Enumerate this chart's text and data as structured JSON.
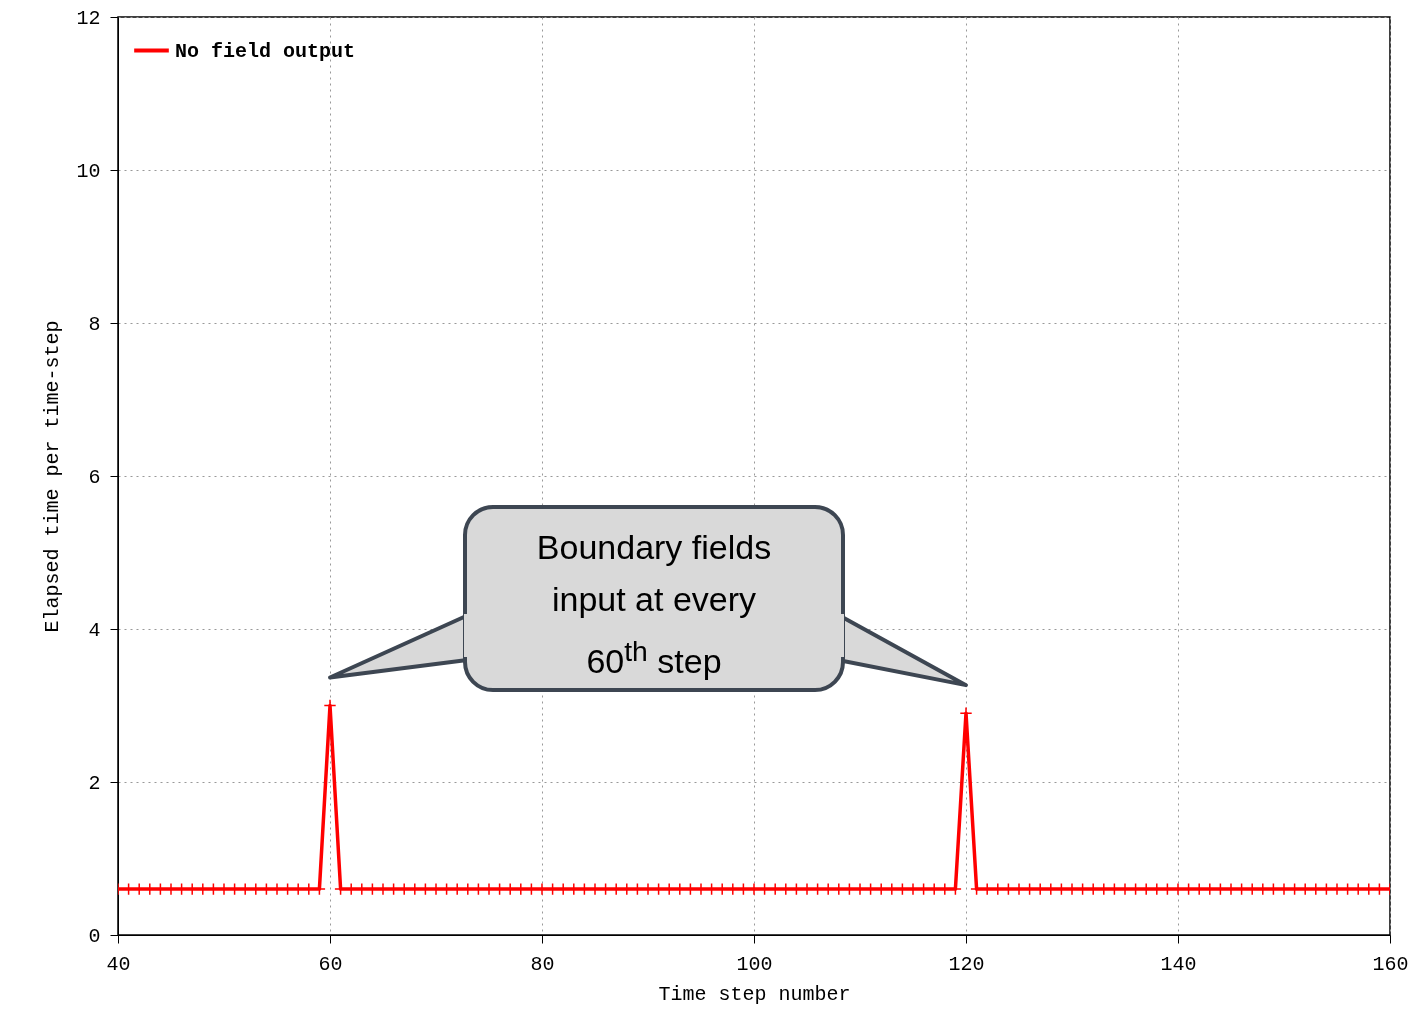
{
  "chart_data": {
    "type": "line",
    "xlabel": "Time step number",
    "ylabel": "Elapsed time per time-step",
    "annotations": [
      "Boundary fields input at every 60$^{th}$ step"
    ],
    "x": [
      40,
      41,
      42,
      43,
      44,
      45,
      46,
      47,
      48,
      49,
      50,
      51,
      52,
      53,
      54,
      55,
      56,
      57,
      58,
      59,
      60,
      61,
      62,
      63,
      64,
      65,
      66,
      67,
      68,
      69,
      70,
      71,
      72,
      73,
      74,
      75,
      76,
      77,
      78,
      79,
      80,
      81,
      82,
      83,
      84,
      85,
      86,
      87,
      88,
      89,
      90,
      91,
      92,
      93,
      94,
      95,
      96,
      97,
      98,
      99,
      100,
      101,
      102,
      103,
      104,
      105,
      106,
      107,
      108,
      109,
      110,
      111,
      112,
      113,
      114,
      115,
      116,
      117,
      118,
      119,
      120,
      121,
      122,
      123,
      124,
      125,
      126,
      127,
      128,
      129,
      130,
      131,
      132,
      133,
      134,
      135,
      136,
      137,
      138,
      139,
      140,
      141,
      142,
      143,
      144,
      145,
      146,
      147,
      148,
      149,
      150,
      151,
      152,
      153,
      154,
      155,
      156,
      157,
      158,
      159,
      160
    ],
    "series": [
      {
        "name": "No field output",
        "color": "#ff0000",
        "values": [
          0.6,
          0.6,
          0.6,
          0.6,
          0.6,
          0.6,
          0.6,
          0.6,
          0.6,
          0.6,
          0.6,
          0.6,
          0.6,
          0.6,
          0.6,
          0.6,
          0.6,
          0.6,
          0.6,
          0.6,
          3.0,
          0.6,
          0.6,
          0.6,
          0.6,
          0.6,
          0.6,
          0.6,
          0.6,
          0.6,
          0.6,
          0.6,
          0.6,
          0.6,
          0.6,
          0.6,
          0.6,
          0.6,
          0.6,
          0.6,
          0.6,
          0.6,
          0.6,
          0.6,
          0.6,
          0.6,
          0.6,
          0.6,
          0.6,
          0.6,
          0.6,
          0.6,
          0.6,
          0.6,
          0.6,
          0.6,
          0.6,
          0.6,
          0.6,
          0.6,
          0.6,
          0.6,
          0.6,
          0.6,
          0.6,
          0.6,
          0.6,
          0.6,
          0.6,
          0.6,
          0.6,
          0.6,
          0.6,
          0.6,
          0.6,
          0.6,
          0.6,
          0.6,
          0.6,
          0.6,
          2.9,
          0.6,
          0.6,
          0.6,
          0.6,
          0.6,
          0.6,
          0.6,
          0.6,
          0.6,
          0.6,
          0.6,
          0.6,
          0.6,
          0.6,
          0.6,
          0.6,
          0.6,
          0.6,
          0.6,
          0.6,
          0.6,
          0.6,
          0.6,
          0.6,
          0.6,
          0.6,
          0.6,
          0.6,
          0.6,
          0.6,
          0.6,
          0.6,
          0.6,
          0.6,
          0.6,
          0.6,
          0.6,
          0.6,
          0.6,
          0.6
        ]
      }
    ],
    "xlim": [
      40,
      160
    ],
    "xticks": [
      40,
      60,
      80,
      100,
      120,
      140,
      160
    ],
    "ylim": [
      0,
      12
    ],
    "yticks": [
      0,
      2,
      4,
      6,
      8,
      10,
      12
    ],
    "grid": true,
    "legend": "top left",
    "marker": "cross",
    "line_style": "solid"
  }
}
